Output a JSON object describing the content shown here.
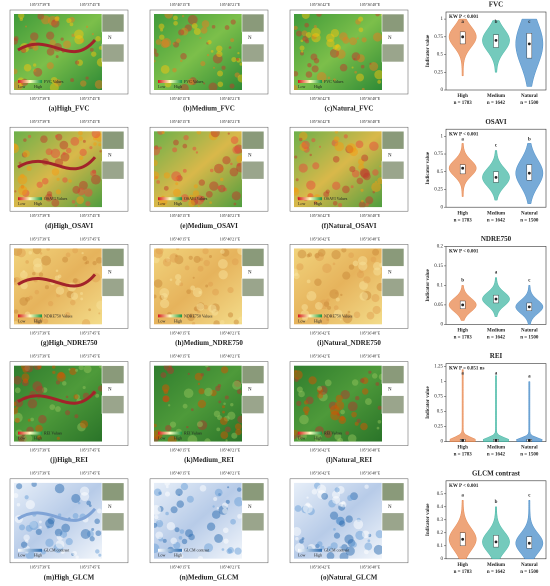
{
  "maps": {
    "lon_labels": [
      [
        "105°37'39\"E",
        "105°37'45\"E"
      ],
      [
        "105°40'15\"E",
        "105°40'21\"E"
      ],
      [
        "105°36'42\"E",
        "105°36'48\"E"
      ]
    ],
    "north": "N",
    "legend_high": "High",
    "legend_low": "Low",
    "rows": [
      {
        "legend_title": "FVC Values",
        "captions": [
          "(a)High_FVC",
          "(b)Medium_FVC",
          "(c)Natural_FVC"
        ]
      },
      {
        "legend_title": "OSAVI Values",
        "captions": [
          "(d)High_OSAVI",
          "(e)Medium_OSAVI",
          "(f)Natural_OSAVI"
        ]
      },
      {
        "legend_title": "NDRE750 Values",
        "captions": [
          "(g)High_NDRE750",
          "(h)Medium_NDRE750",
          "(i)Natural_NDRE750"
        ]
      },
      {
        "legend_title": "REI Values",
        "captions": [
          "(j)High_REI",
          "(k)Medium_REI",
          "(l)Natural_REI"
        ]
      },
      {
        "legend_title": "GLCM contrast",
        "captions": [
          "(m)High_GLCM",
          "(n)Medium_GLCM",
          "(o)Natural_GLCM"
        ]
      }
    ]
  },
  "chart_data": [
    {
      "type": "violin",
      "title": "FVC",
      "annotation": "KW P < 0.001",
      "y_label": "Indicator value",
      "categories": [
        "High",
        "Medium",
        "Natural"
      ],
      "n_labels": [
        "n = 1783",
        "n = 1642",
        "n = 1500"
      ],
      "colors": [
        "#e8874e",
        "#46b8a6",
        "#4a8ec9"
      ],
      "letters": [
        "a",
        "b",
        "c"
      ],
      "min": [
        0.2,
        0.25,
        0.05
      ],
      "q1": [
        0.65,
        0.6,
        0.45
      ],
      "median": [
        0.75,
        0.7,
        0.65
      ],
      "q3": [
        0.82,
        0.78,
        0.8
      ],
      "max": [
        1.0,
        0.98,
        1.0
      ],
      "ylim": [
        0,
        1.1
      ],
      "yticks": [
        0,
        0.25,
        0.5,
        0.75,
        1
      ]
    },
    {
      "type": "violin",
      "title": "OSAVI",
      "annotation": "KW P < 0.001",
      "y_label": "Indicator value",
      "categories": [
        "High",
        "Medium",
        "Natural"
      ],
      "n_labels": [
        "n = 1783",
        "n = 1642",
        "n = 1500"
      ],
      "colors": [
        "#e8874e",
        "#46b8a6",
        "#4a8ec9"
      ],
      "letters": [
        "a",
        "c",
        "b"
      ],
      "min": [
        0.15,
        0.1,
        0.05
      ],
      "q1": [
        0.47,
        0.35,
        0.38
      ],
      "median": [
        0.55,
        0.42,
        0.48
      ],
      "q3": [
        0.6,
        0.5,
        0.6
      ],
      "max": [
        0.9,
        0.8,
        0.9
      ],
      "ylim": [
        0,
        1.1
      ],
      "yticks": [
        0,
        0.25,
        0.5,
        0.75,
        1
      ]
    },
    {
      "type": "violin",
      "title": "NDRE750",
      "annotation": "KW P < 0.001",
      "y_label": "Indicator value",
      "categories": [
        "High",
        "Medium",
        "Natural"
      ],
      "n_labels": [
        "n = 1783",
        "n = 1642",
        "n = 1500"
      ],
      "colors": [
        "#e8874e",
        "#46b8a6",
        "#4a8ec9"
      ],
      "letters": [
        "b",
        "a",
        "c"
      ],
      "min": [
        0.01,
        0.02,
        0.0
      ],
      "q1": [
        0.04,
        0.055,
        0.035
      ],
      "median": [
        0.05,
        0.065,
        0.045
      ],
      "q3": [
        0.06,
        0.075,
        0.055
      ],
      "max": [
        0.1,
        0.12,
        0.1
      ],
      "ylim": [
        0,
        0.2
      ],
      "yticks": [
        0,
        0.05,
        0.1,
        0.15,
        0.2
      ]
    },
    {
      "type": "violin",
      "title": "REI",
      "annotation": "KW P = 0.851 ns",
      "y_label": "Indicator value",
      "categories": [
        "High",
        "Medium",
        "Natural"
      ],
      "n_labels": [
        "n = 1783",
        "n = 1642",
        "n = 1500"
      ],
      "colors": [
        "#e8874e",
        "#46b8a6",
        "#4a8ec9"
      ],
      "letters": [
        "a",
        "a",
        "a"
      ],
      "min": [
        0,
        0,
        0
      ],
      "q1": [
        0,
        0,
        0
      ],
      "median": [
        0.02,
        0.02,
        0.02
      ],
      "q3": [
        0.04,
        0.04,
        0.04
      ],
      "max": [
        1.2,
        1.1,
        1.0
      ],
      "ylim": [
        0,
        1.3
      ],
      "yticks": [
        0,
        0.25,
        0.5,
        0.75,
        1,
        1.25
      ]
    },
    {
      "type": "violin",
      "title": "GLCM contrast",
      "annotation": "KW P < 0.001",
      "y_label": "Indicator value",
      "categories": [
        "High",
        "Medium",
        "Natural"
      ],
      "n_labels": [
        "n = 1783",
        "n = 1642",
        "n = 1500"
      ],
      "colors": [
        "#e8874e",
        "#46b8a6",
        "#4a8ec9"
      ],
      "letters": [
        "a",
        "b",
        "c"
      ],
      "min": [
        0,
        0,
        0
      ],
      "q1": [
        0.1,
        0.09,
        0.08
      ],
      "median": [
        0.15,
        0.13,
        0.12
      ],
      "q3": [
        0.2,
        0.18,
        0.17
      ],
      "max": [
        0.45,
        0.4,
        0.45
      ],
      "ylim": [
        0,
        0.6
      ],
      "yticks": [
        0,
        0.1,
        0.2,
        0.3,
        0.4,
        0.5
      ]
    }
  ]
}
